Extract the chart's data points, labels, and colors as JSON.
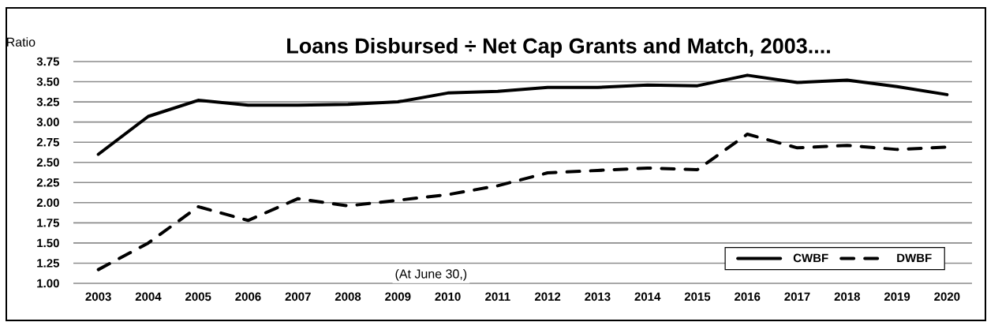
{
  "chart_data": {
    "type": "line",
    "title": "Loans Disbursed  ÷ Net Cap Grants and Match, 2003....",
    "ylabel": "Ratio",
    "annotations": [
      "(At June 30,)"
    ],
    "categories": [
      "2003",
      "2004",
      "2005",
      "2006",
      "2007",
      "2008",
      "2009",
      "2010",
      "2011",
      "2012",
      "2013",
      "2014",
      "2015",
      "2016",
      "2017",
      "2018",
      "2019",
      "2020"
    ],
    "series": [
      {
        "name": "CWBF",
        "color": "#000000",
        "line_style": "solid",
        "values": [
          2.6,
          3.07,
          3.27,
          3.21,
          3.21,
          3.22,
          3.25,
          3.36,
          3.38,
          3.43,
          3.43,
          3.46,
          3.45,
          3.58,
          3.49,
          3.52,
          3.44,
          3.34
        ]
      },
      {
        "name": "DWBF",
        "color": "#000000",
        "line_style": "dashed",
        "values": [
          1.17,
          1.5,
          1.95,
          1.78,
          2.05,
          1.96,
          2.03,
          2.1,
          2.21,
          2.37,
          2.4,
          2.43,
          2.41,
          2.85,
          2.68,
          2.71,
          2.66,
          2.69
        ]
      }
    ],
    "ylim": [
      1.0,
      3.75
    ],
    "yticks": [
      {
        "value": 1.0,
        "label": "1.00"
      },
      {
        "value": 1.25,
        "label": "1.25"
      },
      {
        "value": 1.5,
        "label": "1.50"
      },
      {
        "value": 1.75,
        "label": "1.75"
      },
      {
        "value": 2.0,
        "label": "2.00"
      },
      {
        "value": 2.25,
        "label": "2.25"
      },
      {
        "value": 2.5,
        "label": "2.50"
      },
      {
        "value": 2.75,
        "label": "2.75"
      },
      {
        "value": 3.0,
        "label": "3.00"
      },
      {
        "value": 3.25,
        "label": "3.25"
      },
      {
        "value": 3.5,
        "label": "3.50"
      },
      {
        "value": 3.75,
        "label": "3.75"
      }
    ],
    "grid": "y",
    "legend": "bottom right",
    "marker": "none"
  }
}
